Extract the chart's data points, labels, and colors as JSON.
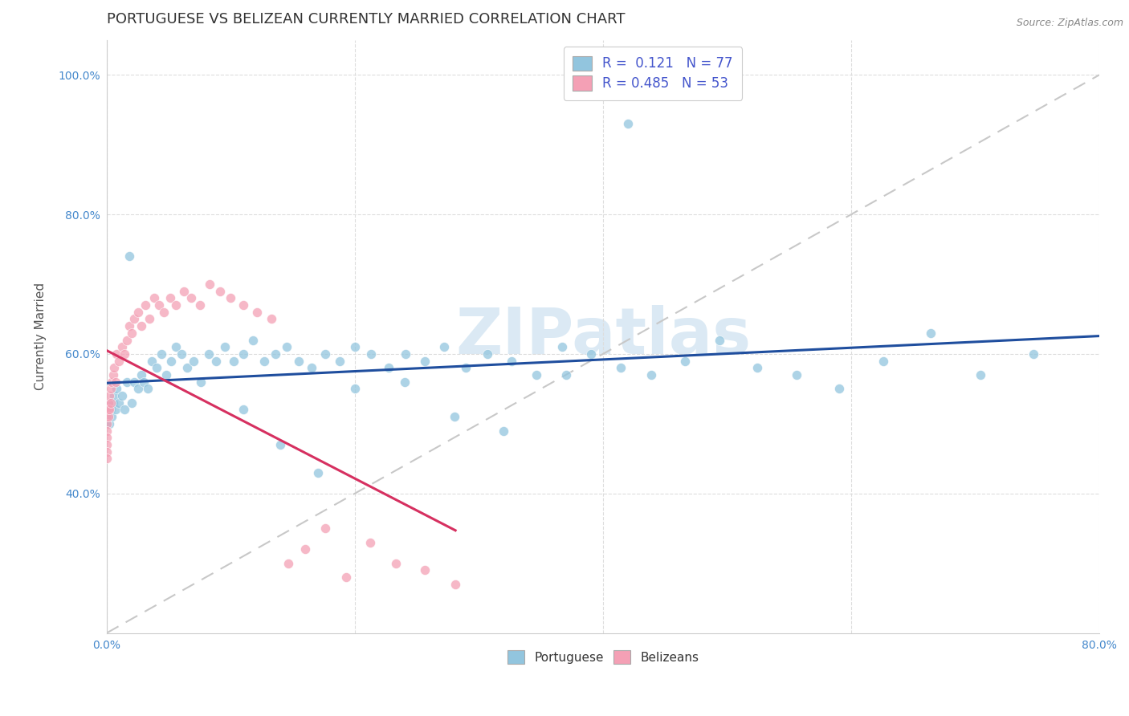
{
  "title": "PORTUGUESE VS BELIZEAN CURRENTLY MARRIED CORRELATION CHART",
  "source": "Source: ZipAtlas.com",
  "ylabel_label": "Currently Married",
  "watermark": "ZIPatlas",
  "xlim": [
    0.0,
    0.8
  ],
  "ylim": [
    0.2,
    1.05
  ],
  "xticks": [
    0.0,
    0.2,
    0.4,
    0.6,
    0.8
  ],
  "xtick_labels": [
    "0.0%",
    "",
    "",
    "",
    "80.0%"
  ],
  "yticks": [
    0.4,
    0.6,
    0.8,
    1.0
  ],
  "ytick_labels": [
    "40.0%",
    "60.0%",
    "80.0%",
    "100.0%"
  ],
  "legend_R1": "0.121",
  "legend_N1": "77",
  "legend_R2": "0.485",
  "legend_N2": "53",
  "portuguese_color": "#92c5de",
  "belizean_color": "#f4a0b5",
  "portuguese_line_color": "#1f4e9e",
  "belizean_line_color": "#d63060",
  "diagonal_color": "#c8c8c8",
  "portuguese_x": [
    0.0,
    0.0,
    0.001,
    0.001,
    0.002,
    0.003,
    0.004,
    0.005,
    0.006,
    0.007,
    0.008,
    0.01,
    0.012,
    0.014,
    0.016,
    0.018,
    0.02,
    0.022,
    0.025,
    0.028,
    0.03,
    0.033,
    0.036,
    0.04,
    0.044,
    0.048,
    0.052,
    0.056,
    0.06,
    0.065,
    0.07,
    0.076,
    0.082,
    0.088,
    0.095,
    0.102,
    0.11,
    0.118,
    0.127,
    0.136,
    0.145,
    0.155,
    0.165,
    0.176,
    0.188,
    0.2,
    0.213,
    0.227,
    0.241,
    0.256,
    0.272,
    0.289,
    0.307,
    0.326,
    0.346,
    0.367,
    0.39,
    0.414,
    0.439,
    0.466,
    0.494,
    0.524,
    0.556,
    0.59,
    0.626,
    0.664,
    0.704,
    0.747,
    0.11,
    0.14,
    0.17,
    0.2,
    0.24,
    0.28,
    0.32,
    0.37,
    0.42
  ],
  "portuguese_y": [
    0.52,
    0.5,
    0.51,
    0.53,
    0.5,
    0.52,
    0.51,
    0.53,
    0.54,
    0.52,
    0.55,
    0.53,
    0.54,
    0.52,
    0.56,
    0.74,
    0.53,
    0.56,
    0.55,
    0.57,
    0.56,
    0.55,
    0.59,
    0.58,
    0.6,
    0.57,
    0.59,
    0.61,
    0.6,
    0.58,
    0.59,
    0.56,
    0.6,
    0.59,
    0.61,
    0.59,
    0.6,
    0.62,
    0.59,
    0.6,
    0.61,
    0.59,
    0.58,
    0.6,
    0.59,
    0.61,
    0.6,
    0.58,
    0.6,
    0.59,
    0.61,
    0.58,
    0.6,
    0.59,
    0.57,
    0.61,
    0.6,
    0.58,
    0.57,
    0.59,
    0.62,
    0.58,
    0.57,
    0.55,
    0.59,
    0.63,
    0.57,
    0.6,
    0.52,
    0.47,
    0.43,
    0.55,
    0.56,
    0.51,
    0.49,
    0.57,
    0.93
  ],
  "belizean_x": [
    0.0,
    0.0,
    0.0,
    0.0,
    0.0,
    0.0,
    0.0,
    0.0,
    0.001,
    0.001,
    0.001,
    0.002,
    0.002,
    0.003,
    0.003,
    0.004,
    0.005,
    0.006,
    0.007,
    0.008,
    0.01,
    0.012,
    0.014,
    0.016,
    0.018,
    0.02,
    0.022,
    0.025,
    0.028,
    0.031,
    0.034,
    0.038,
    0.042,
    0.046,
    0.051,
    0.056,
    0.062,
    0.068,
    0.075,
    0.083,
    0.091,
    0.1,
    0.11,
    0.121,
    0.133,
    0.146,
    0.16,
    0.176,
    0.193,
    0.212,
    0.233,
    0.256,
    0.281
  ],
  "belizean_y": [
    0.52,
    0.51,
    0.5,
    0.49,
    0.48,
    0.47,
    0.46,
    0.45,
    0.53,
    0.52,
    0.51,
    0.54,
    0.52,
    0.55,
    0.53,
    0.56,
    0.57,
    0.58,
    0.56,
    0.6,
    0.59,
    0.61,
    0.6,
    0.62,
    0.64,
    0.63,
    0.65,
    0.66,
    0.64,
    0.67,
    0.65,
    0.68,
    0.67,
    0.66,
    0.68,
    0.67,
    0.69,
    0.68,
    0.67,
    0.7,
    0.69,
    0.68,
    0.67,
    0.66,
    0.65,
    0.3,
    0.32,
    0.35,
    0.28,
    0.33,
    0.3,
    0.29,
    0.27
  ],
  "title_fontsize": 13,
  "axis_label_fontsize": 11,
  "tick_fontsize": 10,
  "background_color": "#ffffff",
  "grid_color": "#dddddd"
}
